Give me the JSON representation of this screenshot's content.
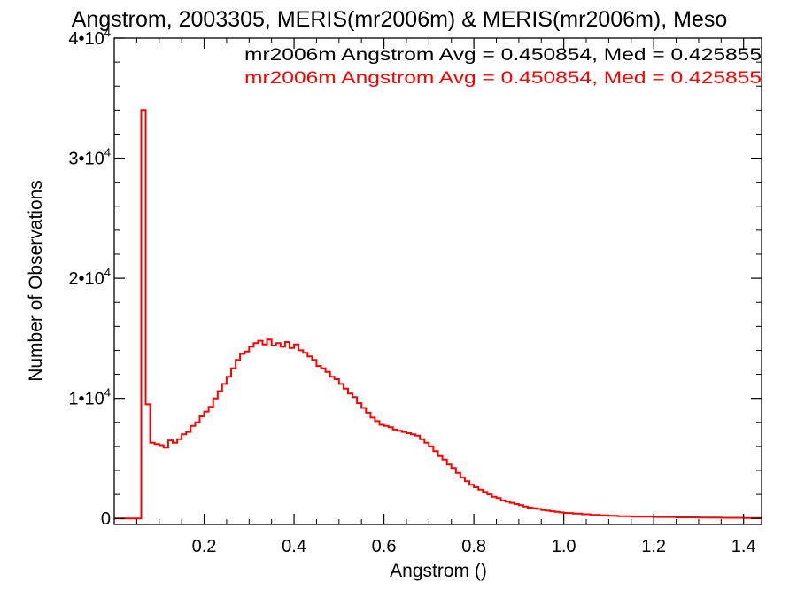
{
  "chart_data": {
    "type": "histogram",
    "title": "Angstrom, 2003305, MERIS(mr2006m) & MERIS(mr2006m), Meso",
    "xlabel": "Angstrom ()",
    "ylabel": "Number of Observations",
    "xlim": [
      0.0,
      1.44
    ],
    "ylim": [
      -500,
      40000
    ],
    "x_ticks": [
      "0.2",
      "0.4",
      "0.6",
      "0.8",
      "1.0",
      "1.2",
      "1.4"
    ],
    "x_tick_values": [
      0.2,
      0.4,
      0.6,
      0.8,
      1.0,
      1.2,
      1.4
    ],
    "y_ticks": [
      {
        "value": 0,
        "mantissa": "0",
        "exponent": ""
      },
      {
        "value": 10000,
        "mantissa": "1•10",
        "exponent": "4"
      },
      {
        "value": 20000,
        "mantissa": "2•10",
        "exponent": "4"
      },
      {
        "value": 30000,
        "mantissa": "3•10",
        "exponent": "4"
      },
      {
        "value": 40000,
        "mantissa": "4•10",
        "exponent": "4"
      }
    ],
    "annotations": [
      {
        "text": "mr2006m Angstrom Avg = 0.450854, Med = 0.425855",
        "color": "#000000"
      },
      {
        "text": "mr2006m Angstrom Avg = 0.450854, Med = 0.425855",
        "color": "#ff0000"
      }
    ],
    "series": [
      {
        "color": "#ff0000",
        "bin_width": 0.01,
        "x": [
          0.0,
          0.06,
          0.07,
          0.08,
          0.09,
          0.1,
          0.11,
          0.12,
          0.13,
          0.14,
          0.15,
          0.16,
          0.17,
          0.18,
          0.19,
          0.2,
          0.21,
          0.22,
          0.23,
          0.24,
          0.25,
          0.26,
          0.27,
          0.28,
          0.29,
          0.3,
          0.31,
          0.32,
          0.33,
          0.34,
          0.35,
          0.36,
          0.37,
          0.38,
          0.39,
          0.4,
          0.41,
          0.42,
          0.43,
          0.44,
          0.45,
          0.46,
          0.47,
          0.48,
          0.49,
          0.5,
          0.51,
          0.52,
          0.53,
          0.54,
          0.55,
          0.56,
          0.57,
          0.58,
          0.59,
          0.6,
          0.61,
          0.62,
          0.63,
          0.64,
          0.65,
          0.66,
          0.67,
          0.68,
          0.69,
          0.7,
          0.71,
          0.72,
          0.73,
          0.74,
          0.75,
          0.76,
          0.77,
          0.78,
          0.79,
          0.8,
          0.81,
          0.82,
          0.83,
          0.84,
          0.85,
          0.86,
          0.87,
          0.88,
          0.89,
          0.9,
          0.91,
          0.92,
          0.93,
          0.94,
          0.95,
          0.96,
          0.97,
          0.98,
          0.99,
          1.0,
          1.02,
          1.04,
          1.06,
          1.08,
          1.1,
          1.12,
          1.15,
          1.2,
          1.25,
          1.3,
          1.35,
          1.4,
          1.44
        ],
        "values": [
          0,
          34000,
          9500,
          6300,
          6200,
          6100,
          5900,
          6500,
          6300,
          6600,
          7000,
          7200,
          7700,
          8000,
          8500,
          8900,
          9300,
          10000,
          10600,
          11200,
          11800,
          12500,
          13200,
          13700,
          13900,
          14300,
          14600,
          14800,
          14500,
          14900,
          14400,
          14600,
          14300,
          14700,
          14200,
          14500,
          14000,
          13800,
          13500,
          13200,
          12700,
          12500,
          12200,
          11800,
          11600,
          11200,
          10800,
          10400,
          10100,
          9600,
          9200,
          8800,
          8400,
          8100,
          7800,
          7700,
          7600,
          7400,
          7300,
          7200,
          7100,
          7000,
          6900,
          6600,
          6300,
          6000,
          5600,
          5200,
          4900,
          4500,
          4200,
          3800,
          3400,
          3100,
          2800,
          2600,
          2400,
          2200,
          2000,
          1800,
          1700,
          1500,
          1400,
          1300,
          1200,
          1100,
          1000,
          900,
          850,
          800,
          700,
          650,
          600,
          550,
          500,
          450,
          400,
          350,
          300,
          260,
          220,
          180,
          150,
          120,
          90,
          70,
          50,
          40,
          0
        ]
      }
    ]
  }
}
